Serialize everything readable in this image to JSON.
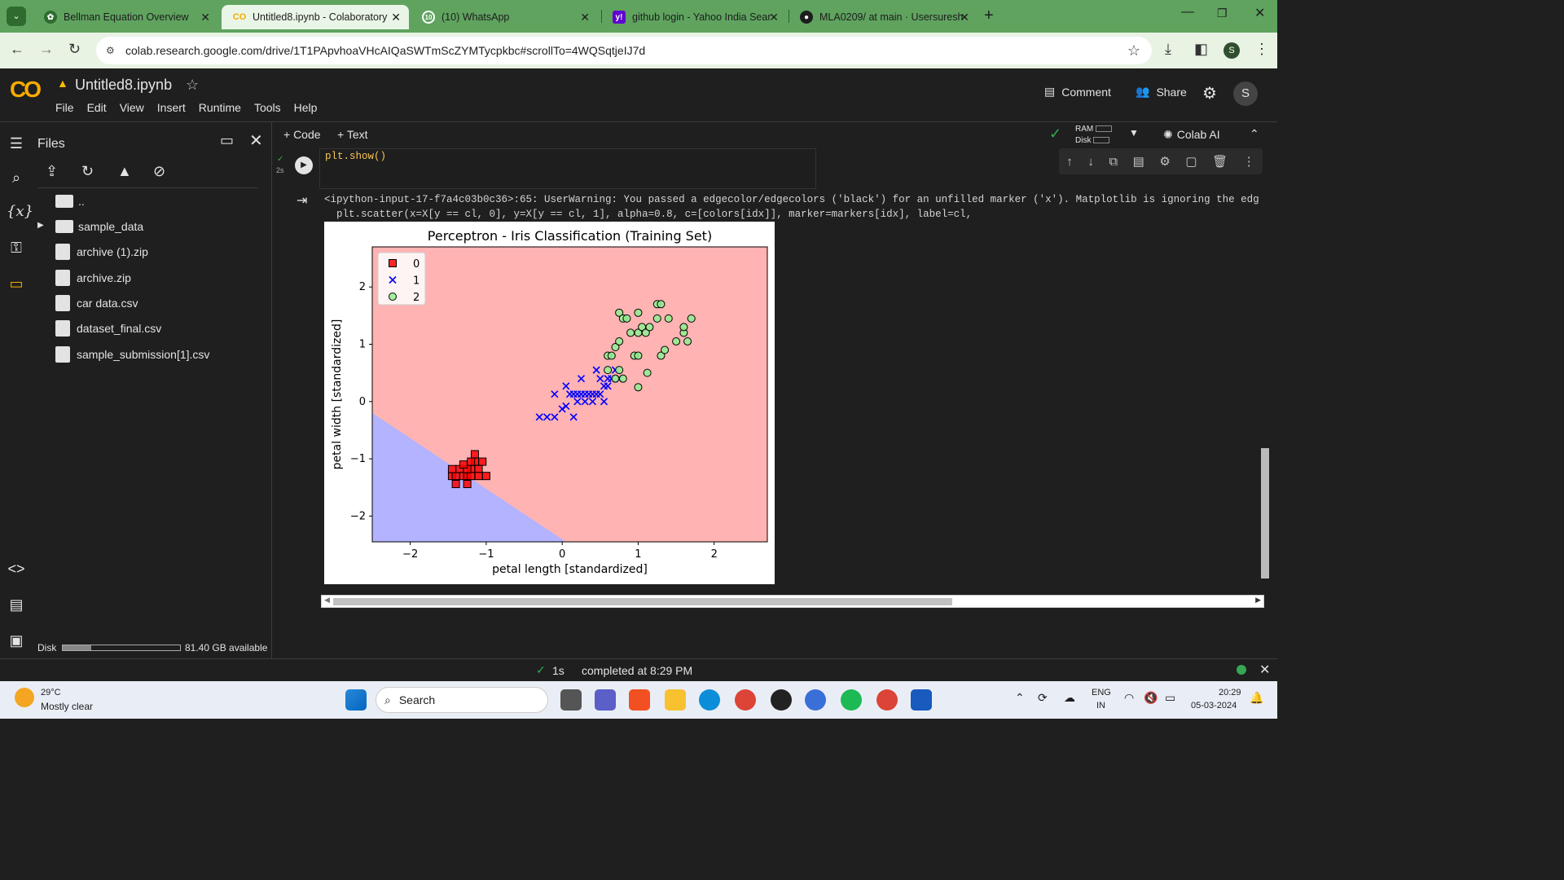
{
  "browser": {
    "tabs": [
      {
        "label": "Bellman Equation Overview",
        "icon": "chatgpt-icon",
        "active": false
      },
      {
        "label": "Untitled8.ipynb - Colaboratory",
        "icon": "colab-icon",
        "active": true
      },
      {
        "label": "(10) WhatsApp",
        "icon": "whatsapp-icon",
        "active": false
      },
      {
        "label": "github login - Yahoo India Sear",
        "icon": "yahoo-icon",
        "active": false
      },
      {
        "label": "MLA0209/ at main · Usersuresh",
        "icon": "github-icon",
        "active": false
      }
    ],
    "url": "colab.research.google.com/drive/1T1PApvhoaVHcAIQaSWTmScZYMTycpkbc#scrollTo=4WQSqtjeIJ7d",
    "profile_initial": "S"
  },
  "colab": {
    "logo": "CO",
    "notebook_name": "Untitled8.ipynb",
    "menu": [
      "File",
      "Edit",
      "View",
      "Insert",
      "Runtime",
      "Tools",
      "Help"
    ],
    "comment_label": "Comment",
    "share_label": "Share",
    "avatar": "S",
    "add_code": "+ Code",
    "add_text": "+ Text",
    "ram_label": "RAM",
    "disk_label": "Disk",
    "colab_ai": "Colab AI"
  },
  "files_panel": {
    "title": "Files",
    "items": [
      {
        "name": "..",
        "type": "folder"
      },
      {
        "name": "sample_data",
        "type": "folder"
      },
      {
        "name": "archive (1).zip",
        "type": "file"
      },
      {
        "name": "archive.zip",
        "type": "file"
      },
      {
        "name": "car data.csv",
        "type": "file"
      },
      {
        "name": "dataset_final.csv",
        "type": "file"
      },
      {
        "name": "sample_submission[1].csv",
        "type": "file"
      }
    ],
    "disk_label": "Disk",
    "disk_available": "81.40 GB available",
    "disk_fraction": 0.24
  },
  "cell": {
    "exec_time": "2s",
    "code": "plt.show()",
    "warning_line1": "<ipython-input-17-f7a4c03b0c36>:65: UserWarning: You passed a edgecolor/edgecolors ('black') for an unfilled marker ('x').  Matplotlib is ignoring the edg",
    "warning_line2": "  plt.scatter(x=X[y == cl, 0], y=X[y == cl, 1], alpha=0.8, c=[colors[idx]], marker=markers[idx], label=cl,"
  },
  "status": {
    "time": "1s",
    "message": "completed at 8:29 PM"
  },
  "taskbar": {
    "weather_temp": "29°C",
    "weather_desc": "Mostly clear",
    "search": "Search",
    "lang1": "ENG",
    "lang2": "IN",
    "time": "20:29",
    "date": "05-03-2024"
  },
  "chart_data": {
    "type": "scatter",
    "title": "Perceptron - Iris Classification (Training Set)",
    "xlabel": "petal length [standardized]",
    "ylabel": "petal width [standardized]",
    "xlim": [
      -2.5,
      2.7
    ],
    "ylim": [
      -2.45,
      2.7
    ],
    "xticks": [
      "−2",
      "−1",
      "0",
      "1",
      "2"
    ],
    "xtick_values": [
      -2,
      -1,
      0,
      1,
      2
    ],
    "yticks": [
      "−2",
      "−1",
      "0",
      "1",
      "2"
    ],
    "ytick_values": [
      -2,
      -1,
      0,
      1,
      2
    ],
    "decision_boundary": {
      "x1": -2.5,
      "y1": -0.2,
      "x2": 0.05,
      "y2": -2.45
    },
    "region_colors": {
      "class0": "#b3b3ff",
      "class1": "#ffb3b3"
    },
    "legend": [
      "0",
      "1",
      "2"
    ],
    "legend_position": "top-left",
    "series": [
      {
        "name": "0",
        "marker": "square",
        "color": "#ff0000",
        "points": [
          [
            -1.45,
            -1.3
          ],
          [
            -1.4,
            -1.3
          ],
          [
            -1.35,
            -1.18
          ],
          [
            -1.3,
            -1.3
          ],
          [
            -1.25,
            -1.3
          ],
          [
            -1.2,
            -1.18
          ],
          [
            -1.2,
            -1.3
          ],
          [
            -1.25,
            -1.18
          ],
          [
            -1.15,
            -1.05
          ],
          [
            -1.1,
            -1.18
          ],
          [
            -1.1,
            -1.3
          ],
          [
            -1.15,
            -0.92
          ],
          [
            -1.05,
            -1.05
          ],
          [
            -1.0,
            -1.3
          ],
          [
            -1.4,
            -1.44
          ],
          [
            -1.25,
            -1.44
          ],
          [
            -1.3,
            -1.1
          ],
          [
            -1.45,
            -1.18
          ],
          [
            -1.2,
            -1.05
          ]
        ]
      },
      {
        "name": "1",
        "marker": "x",
        "color": "#0000ff",
        "points": [
          [
            -0.3,
            -0.27
          ],
          [
            -0.2,
            -0.27
          ],
          [
            -0.1,
            -0.27
          ],
          [
            0.0,
            -0.13
          ],
          [
            0.05,
            -0.08
          ],
          [
            0.1,
            0.13
          ],
          [
            0.15,
            0.13
          ],
          [
            0.2,
            0.13
          ],
          [
            0.25,
            0.13
          ],
          [
            0.3,
            0.13
          ],
          [
            0.35,
            0.13
          ],
          [
            0.4,
            0.13
          ],
          [
            0.45,
            0.13
          ],
          [
            0.5,
            0.13
          ],
          [
            0.55,
            0.27
          ],
          [
            0.6,
            0.27
          ],
          [
            0.65,
            0.4
          ],
          [
            0.5,
            0.4
          ],
          [
            0.4,
            0.0
          ],
          [
            0.3,
            0.0
          ],
          [
            0.2,
            0.0
          ],
          [
            0.15,
            -0.27
          ],
          [
            -0.1,
            0.13
          ],
          [
            0.05,
            0.27
          ],
          [
            0.25,
            0.4
          ],
          [
            0.45,
            0.55
          ],
          [
            0.6,
            0.4
          ],
          [
            0.7,
            0.55
          ],
          [
            0.55,
            0.0
          ],
          [
            0.75,
            0.4
          ]
        ]
      },
      {
        "name": "2",
        "marker": "circle",
        "color": "#90ee90",
        "points": [
          [
            0.6,
            0.8
          ],
          [
            0.65,
            0.8
          ],
          [
            0.7,
            0.95
          ],
          [
            0.75,
            1.05
          ],
          [
            0.7,
            0.4
          ],
          [
            0.8,
            0.4
          ],
          [
            0.75,
            0.55
          ],
          [
            0.75,
            1.55
          ],
          [
            0.8,
            1.45
          ],
          [
            0.85,
            1.45
          ],
          [
            0.9,
            1.2
          ],
          [
            0.95,
            0.8
          ],
          [
            1.0,
            0.8
          ],
          [
            1.0,
            1.2
          ],
          [
            1.05,
            1.3
          ],
          [
            1.1,
            1.2
          ],
          [
            1.0,
            1.55
          ],
          [
            1.15,
            1.3
          ],
          [
            1.25,
            1.45
          ],
          [
            1.3,
            0.8
          ],
          [
            1.35,
            0.9
          ],
          [
            1.4,
            1.45
          ],
          [
            1.25,
            1.7
          ],
          [
            1.3,
            1.7
          ],
          [
            1.5,
            1.05
          ],
          [
            1.6,
            1.2
          ],
          [
            1.65,
            1.05
          ],
          [
            1.7,
            1.45
          ],
          [
            1.6,
            1.3
          ],
          [
            1.0,
            0.25
          ],
          [
            1.12,
            0.5
          ],
          [
            0.6,
            0.55
          ]
        ]
      }
    ]
  }
}
